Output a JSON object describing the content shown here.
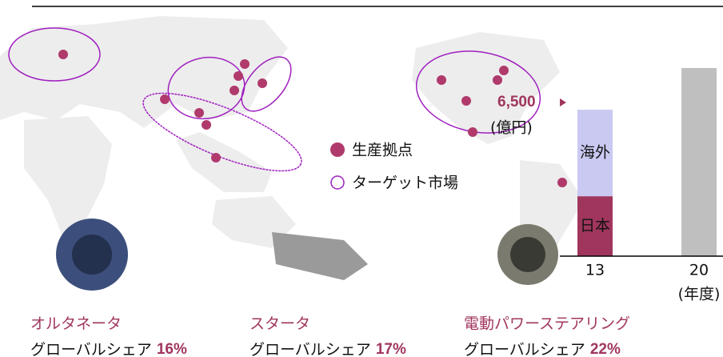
{
  "chart_data": {
    "type": "bar",
    "categories": [
      "13",
      "20"
    ],
    "series": [
      {
        "name": "日本",
        "color": "#a0365e",
        "values": [
          2660,
          null
        ]
      },
      {
        "name": "海外",
        "color": "#c9c9f2",
        "values": [
          3840,
          null
        ]
      },
      {
        "color": "#bfbfbf",
        "values": [
          null,
          8350
        ]
      }
    ],
    "annotation": "6,500",
    "unit_label": "(億円)",
    "x_label": "(年度)"
  },
  "legend": {
    "sites": "生産拠点",
    "markets": "ターゲット市場"
  },
  "products": [
    {
      "name": "オルタネータ",
      "share_label": "グローバルシェア",
      "share": "16%"
    },
    {
      "name": "スタータ",
      "share_label": "グローバルシェア",
      "share": "17%"
    },
    {
      "name": "電動パワーステアリング",
      "share_label": "グローバルシェア",
      "share": "22%"
    }
  ]
}
